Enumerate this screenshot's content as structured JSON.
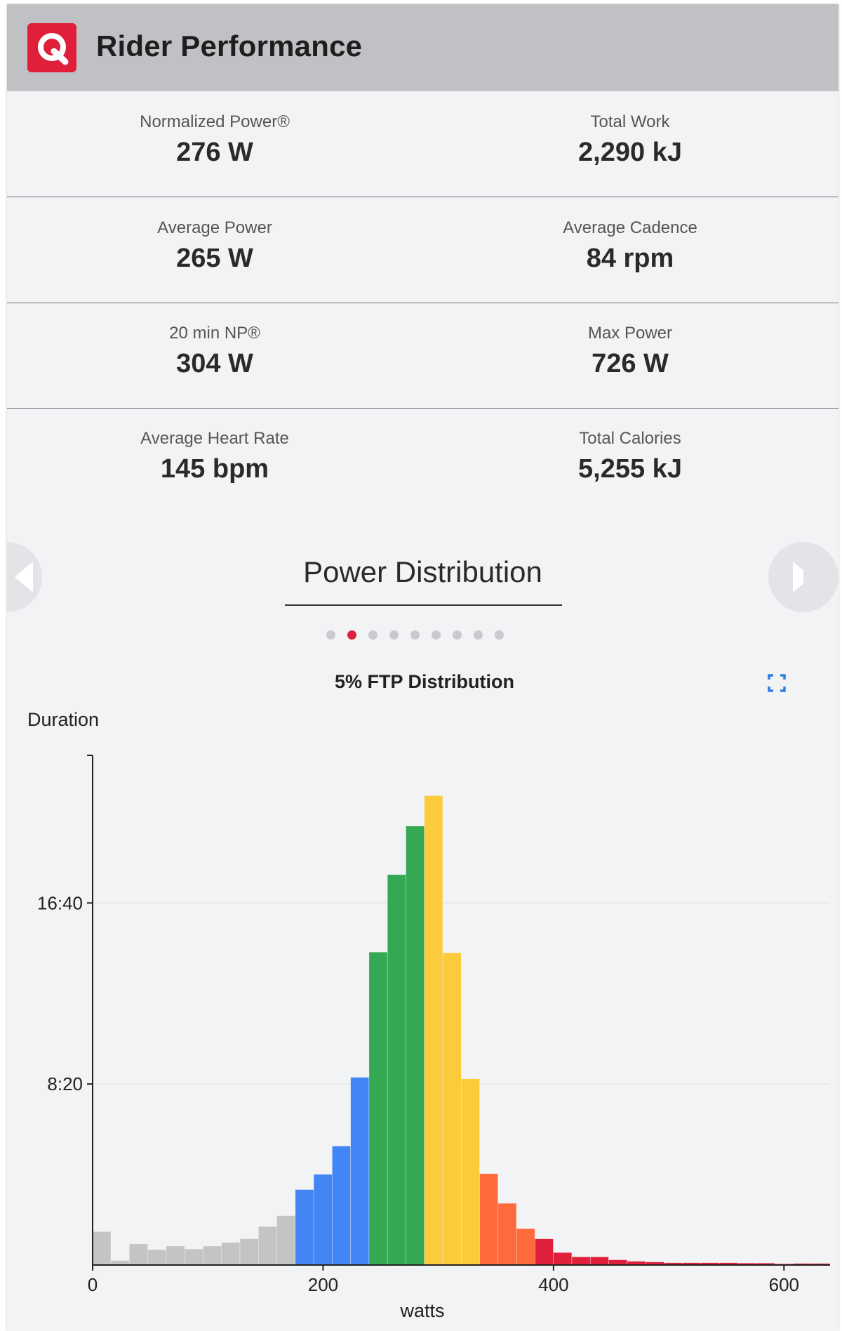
{
  "header": {
    "logo_letter": "Q",
    "logo_color": "#e0203a",
    "title": "Rider Performance"
  },
  "stats": [
    {
      "label": "Normalized Power®",
      "value": "276 W"
    },
    {
      "label": "Total Work",
      "value": "2,290 kJ"
    },
    {
      "label": "Average Power",
      "value": "265 W"
    },
    {
      "label": "Average Cadence",
      "value": "84 rpm"
    },
    {
      "label": "20 min NP®",
      "value": "304 W"
    },
    {
      "label": "Max Power",
      "value": "726 W"
    },
    {
      "label": "Average Heart Rate",
      "value": "145 bpm"
    },
    {
      "label": "Total Calories",
      "value": "5,255 kJ"
    }
  ],
  "carousel": {
    "title": "Power Distribution",
    "prev_icon": "chevron-left-icon",
    "next_icon": "chevron-right-icon",
    "page_count": 9,
    "active_page": 2
  },
  "chart_data": {
    "type": "bar",
    "title": "5% FTP Distribution",
    "ylabel": "Duration",
    "xlabel": "watts",
    "xlim": [
      0,
      640
    ],
    "ylim": [
      0,
      1400
    ],
    "x_ticks": [
      0,
      200,
      400,
      600
    ],
    "y_ticks": [
      {
        "value": 500,
        "label": "8:20"
      },
      {
        "value": 1000,
        "label": "16:40"
      }
    ],
    "grid": "horizontal",
    "expand_icon": "fullscreen-icon",
    "bin_width": 16,
    "bins": [
      {
        "x": 0,
        "y": 92,
        "color": "#c3c5c3"
      },
      {
        "x": 16,
        "y": 12,
        "color": "#c3c5c3"
      },
      {
        "x": 32,
        "y": 58,
        "color": "#c3c5c3"
      },
      {
        "x": 48,
        "y": 42,
        "color": "#c3c5c3"
      },
      {
        "x": 64,
        "y": 52,
        "color": "#c3c5c3"
      },
      {
        "x": 80,
        "y": 44,
        "color": "#c3c5c3"
      },
      {
        "x": 96,
        "y": 52,
        "color": "#c3c5c3"
      },
      {
        "x": 112,
        "y": 62,
        "color": "#c3c5c3"
      },
      {
        "x": 128,
        "y": 72,
        "color": "#c3c5c3"
      },
      {
        "x": 144,
        "y": 106,
        "color": "#c3c5c3"
      },
      {
        "x": 160,
        "y": 136,
        "color": "#c3c5c3"
      },
      {
        "x": 176,
        "y": 208,
        "color": "#4285f4"
      },
      {
        "x": 192,
        "y": 250,
        "color": "#4285f4"
      },
      {
        "x": 208,
        "y": 328,
        "color": "#4285f4"
      },
      {
        "x": 224,
        "y": 518,
        "color": "#4285f4"
      },
      {
        "x": 240,
        "y": 864,
        "color": "#34a853"
      },
      {
        "x": 256,
        "y": 1078,
        "color": "#34a853"
      },
      {
        "x": 272,
        "y": 1212,
        "color": "#34a853"
      },
      {
        "x": 288,
        "y": 1296,
        "color": "#fbcb3c"
      },
      {
        "x": 304,
        "y": 862,
        "color": "#fbcb3c"
      },
      {
        "x": 320,
        "y": 514,
        "color": "#fbcb3c"
      },
      {
        "x": 336,
        "y": 252,
        "color": "#ff6a3c"
      },
      {
        "x": 352,
        "y": 170,
        "color": "#ff6a3c"
      },
      {
        "x": 368,
        "y": 100,
        "color": "#ff6a3c"
      },
      {
        "x": 384,
        "y": 72,
        "color": "#e0203a"
      },
      {
        "x": 400,
        "y": 34,
        "color": "#e0203a"
      },
      {
        "x": 416,
        "y": 22,
        "color": "#e0203a"
      },
      {
        "x": 432,
        "y": 22,
        "color": "#e0203a"
      },
      {
        "x": 448,
        "y": 14,
        "color": "#e0203a"
      },
      {
        "x": 464,
        "y": 10,
        "color": "#e0203a"
      },
      {
        "x": 480,
        "y": 8,
        "color": "#e0203a"
      },
      {
        "x": 496,
        "y": 6,
        "color": "#e0203a"
      },
      {
        "x": 512,
        "y": 6,
        "color": "#e0203a"
      },
      {
        "x": 528,
        "y": 6,
        "color": "#e0203a"
      },
      {
        "x": 544,
        "y": 6,
        "color": "#e0203a"
      },
      {
        "x": 560,
        "y": 5,
        "color": "#e0203a"
      },
      {
        "x": 576,
        "y": 5,
        "color": "#e0203a"
      },
      {
        "x": 592,
        "y": 3,
        "color": "#e0203a"
      },
      {
        "x": 608,
        "y": 4,
        "color": "#e0203a"
      },
      {
        "x": 624,
        "y": 4,
        "color": "#e0203a"
      }
    ]
  }
}
